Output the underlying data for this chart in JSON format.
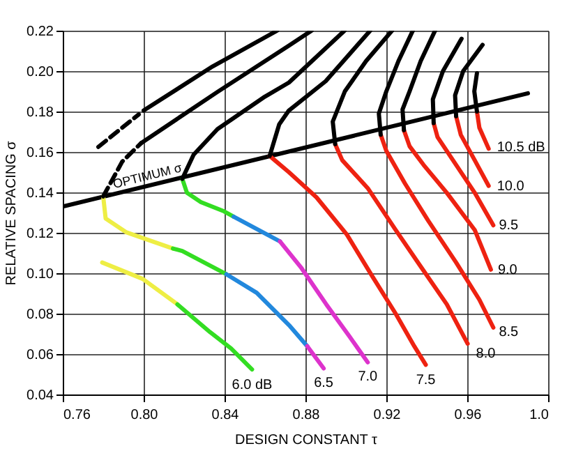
{
  "chart_data": {
    "type": "line",
    "xlabel": "DESIGN CONSTANT τ",
    "ylabel": "RELATIVE SPACING σ",
    "xlim": [
      0.76,
      1.0
    ],
    "ylim": [
      0.04,
      0.22
    ],
    "xticks": [
      0.76,
      {
        "value": 0.8,
        "label": "0.80"
      },
      0.84,
      0.88,
      0.92,
      0.96,
      {
        "value": 1.0,
        "label": "1.0"
      }
    ],
    "yticks": [
      0.04,
      0.06,
      0.08,
      {
        "value": 0.1,
        "label": "0.10"
      },
      0.12,
      0.14,
      0.16,
      0.18,
      {
        "value": 0.2,
        "label": "0.20"
      },
      0.22
    ],
    "grid": true,
    "series": [
      {
        "color": "#000000",
        "x": [
          0.76,
          0.99
        ],
        "values": [
          0.133,
          0.189
        ]
      },
      {
        "color": "#eeee44",
        "x": [
          0.7795,
          0.7995,
          0.8167
        ],
        "values": [
          0.1053,
          0.0972,
          0.0846
        ]
      },
      {
        "color": "#33dd22",
        "x": [
          0.8167,
          0.8329,
          0.8432,
          0.8536
        ],
        "values": [
          0.0846,
          0.0708,
          0.0628,
          0.0524
        ]
      },
      {
        "color": "#eeee44",
        "x": [
          0.78,
          0.7812,
          0.7915,
          0.8145
        ],
        "values": [
          0.138,
          0.1271,
          0.1202,
          0.1122
        ]
      },
      {
        "color": "#33dd22",
        "x": [
          0.8145,
          0.8191,
          0.8409
        ],
        "values": [
          0.1122,
          0.111,
          0.0995
        ]
      },
      {
        "color": "#2288dd",
        "x": [
          0.8409,
          0.8559,
          0.8719,
          0.8809
        ],
        "values": [
          0.0995,
          0.0903,
          0.0743,
          0.0639
        ]
      },
      {
        "color": "#dd33cc",
        "x": [
          0.8809,
          0.889
        ],
        "values": [
          0.0639,
          0.0529
        ]
      },
      {
        "color": "#33dd22",
        "x": [
          0.8191,
          0.8214,
          0.8283,
          0.8398,
          0.8445
        ],
        "values": [
          0.1467,
          0.1398,
          0.1352,
          0.1306,
          0.128
        ]
      },
      {
        "color": "#2288dd",
        "x": [
          0.8445,
          0.8674
        ],
        "values": [
          0.128,
          0.1157
        ]
      },
      {
        "color": "#dd33cc",
        "x": [
          0.8674,
          0.8777,
          0.8903,
          0.9019,
          0.9108
        ],
        "values": [
          0.1157,
          0.103,
          0.0846,
          0.0685,
          0.0559
        ]
      },
      {
        "color": "#ee2211",
        "x": [
          0.8623,
          0.8648,
          0.8717,
          0.8855,
          0.9005,
          0.9131,
          0.9246,
          0.9338,
          0.9395
        ],
        "values": [
          0.158,
          0.1559,
          0.1501,
          0.1375,
          0.1191,
          0.0984,
          0.08,
          0.0639,
          0.0547
        ]
      },
      {
        "color": "#ee2211",
        "x": [
          0.8947,
          0.8982,
          0.9108,
          0.9246,
          0.9372,
          0.9499,
          0.9602
        ],
        "values": [
          0.1639,
          0.1559,
          0.1421,
          0.1214,
          0.103,
          0.0846,
          0.0651
        ]
      },
      {
        "color": "#ee2211",
        "x": [
          0.9172,
          0.92,
          0.9292,
          0.9407,
          0.9545,
          0.966,
          0.9729
        ],
        "values": [
          0.1685,
          0.1605,
          0.1444,
          0.126,
          0.1053,
          0.0869,
          0.0731
        ]
      },
      {
        "color": "#ee2211",
        "x": [
          0.9287,
          0.9315,
          0.9384,
          0.9499,
          0.9637,
          0.9717
        ],
        "values": [
          0.1708,
          0.1628,
          0.1536,
          0.1398,
          0.1214,
          0.1018
        ]
      },
      {
        "color": "#ee2211",
        "x": [
          0.9434,
          0.9453,
          0.9545,
          0.9637,
          0.9729
        ],
        "values": [
          0.1743,
          0.1674,
          0.1536,
          0.1398,
          0.1237
        ]
      },
      {
        "color": "#ee2211",
        "x": [
          0.9545,
          0.9568,
          0.9637,
          0.9706
        ],
        "values": [
          0.1777,
          0.1685,
          0.1559,
          0.1432
        ]
      },
      {
        "color": "#ee2211",
        "x": [
          0.9648,
          0.966,
          0.9706
        ],
        "values": [
          0.18,
          0.172,
          0.1616
        ]
      },
      {
        "color": "#000000",
        "line_style": "dashed",
        "x": [
          0.7776,
          0.7976
        ],
        "values": [
          0.1625,
          0.1786
        ]
      },
      {
        "color": "#000000",
        "x": [
          0.8,
          0.8341,
          0.866
        ],
        "values": [
          0.1805,
          0.2023,
          0.22
        ]
      },
      {
        "color": "#000000",
        "line_style": "dashed",
        "x": [
          0.78,
          0.7894,
          0.7988
        ],
        "values": [
          0.138,
          0.1552,
          0.1644
        ]
      },
      {
        "color": "#000000",
        "x": [
          0.7988,
          0.8365,
          0.8718,
          0.883
        ],
        "values": [
          0.1644,
          0.1897,
          0.2126,
          0.22
        ]
      },
      {
        "color": "#000000",
        "x": [
          0.8191,
          0.8247,
          0.8365,
          0.86,
          0.8718,
          0.8993
        ],
        "values": [
          0.1467,
          0.1586,
          0.1713,
          0.1874,
          0.1943,
          0.22
        ]
      },
      {
        "color": "#000000",
        "x": [
          0.8623,
          0.867,
          0.8718,
          0.89,
          0.912
        ],
        "values": [
          0.158,
          0.1736,
          0.1805,
          0.195,
          0.22
        ]
      },
      {
        "color": "#000000",
        "x": [
          0.8947,
          0.8935,
          0.8995,
          0.91,
          0.9228
        ],
        "values": [
          0.1639,
          0.175,
          0.19,
          0.205,
          0.22
        ]
      },
      {
        "color": "#000000",
        "x": [
          0.9172,
          0.9163,
          0.92,
          0.926,
          0.9331
        ],
        "values": [
          0.1685,
          0.179,
          0.19,
          0.205,
          0.22
        ]
      },
      {
        "color": "#000000",
        "x": [
          0.9287,
          0.928,
          0.9315,
          0.937,
          0.9441
        ],
        "values": [
          0.1708,
          0.181,
          0.19,
          0.205,
          0.22
        ]
      },
      {
        "color": "#000000",
        "x": [
          0.9434,
          0.943,
          0.948,
          0.9572
        ],
        "values": [
          0.1743,
          0.186,
          0.2,
          0.216
        ]
      },
      {
        "color": "#000000",
        "x": [
          0.9545,
          0.954,
          0.958,
          0.9676
        ],
        "values": [
          0.1777,
          0.188,
          0.2,
          0.213
        ]
      },
      {
        "color": "#000000",
        "x": [
          0.9648,
          0.9635,
          0.9648
        ],
        "values": [
          0.18,
          0.19,
          0.199
        ]
      }
    ],
    "annotations": [
      {
        "text": "OPTIMUM σ",
        "x": 0.803,
        "y": 0.1435
      },
      {
        "text": "6.0 dB",
        "x": 0.8536,
        "y": 0.0524
      },
      {
        "text": "6.5",
        "x": 0.889,
        "y": 0.0529
      },
      {
        "text": "7.0",
        "x": 0.9108,
        "y": 0.0559
      },
      {
        "text": "7.5",
        "x": 0.9395,
        "y": 0.0547
      },
      {
        "text": "8.0",
        "x": 0.9602,
        "y": 0.0651
      },
      {
        "text": "8.5",
        "x": 0.9729,
        "y": 0.0731
      },
      {
        "text": "9.0",
        "x": 0.9717,
        "y": 0.1018
      },
      {
        "text": "9.5",
        "x": 0.9729,
        "y": 0.1237
      },
      {
        "text": "10.0",
        "x": 0.9706,
        "y": 0.1432
      },
      {
        "text": "10.5 dB",
        "x": 0.9706,
        "y": 0.1616
      }
    ]
  }
}
